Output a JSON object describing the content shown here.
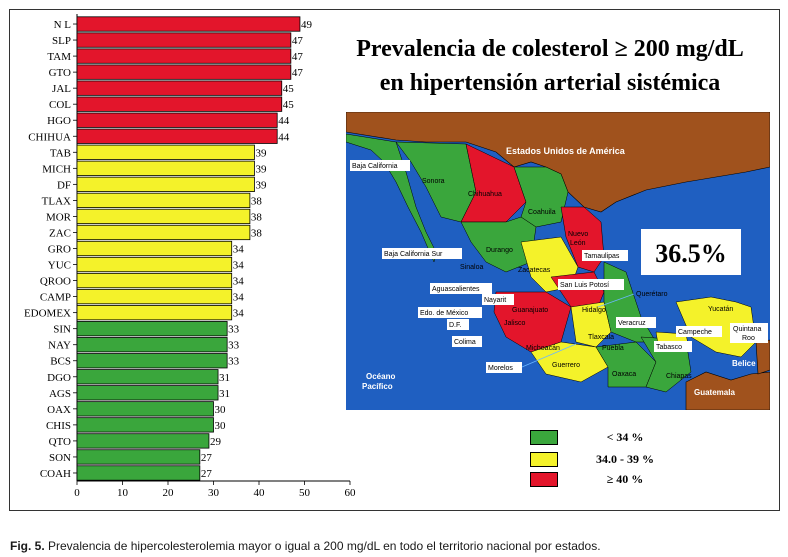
{
  "chart_data": {
    "type": "bar",
    "orientation": "horizontal",
    "categories": [
      "N L",
      "SLP",
      "TAM",
      "GTO",
      "JAL",
      "COL",
      "HGO",
      "CHIHUA",
      "TAB",
      "MICH",
      "DF",
      "TLAX",
      "MOR",
      "ZAC",
      "GRO",
      "YUC",
      "QROO",
      "CAMP",
      "EDOMEX",
      "SIN",
      "NAY",
      "BCS",
      "DGO",
      "AGS",
      "OAX",
      "CHIS",
      "QTO",
      "SON",
      "COAH"
    ],
    "values": [
      49,
      47,
      47,
      47,
      45,
      45,
      44,
      44,
      39,
      39,
      39,
      38,
      38,
      38,
      34,
      34,
      34,
      34,
      34,
      33,
      33,
      33,
      31,
      31,
      30,
      30,
      29,
      27,
      27
    ],
    "xlim": [
      0,
      60
    ],
    "xticks": [
      0,
      10,
      20,
      30,
      40,
      50,
      60
    ],
    "title": "Prevalencia de colesterol ≥ 200 mg/dL en hipertensión arterial sistémica",
    "xlabel": "",
    "ylabel": ""
  },
  "title": {
    "line1": "Prevalencia de colesterol ≥ 200 mg/dL",
    "line2": "en hipertensión arterial sistémica"
  },
  "colors": {
    "high": "#e3152b",
    "mid": "#f4f22a",
    "low": "#3aa63c",
    "ocean": "#1f5fc1",
    "usa": "#a0521d"
  },
  "map": {
    "usa_label": "Estados Unidos de América",
    "national_value": "36.5%",
    "ocean_label_1": "Océano",
    "ocean_label_2": "Pacífico",
    "belice": "Belice",
    "guatemala": "Guatemala",
    "states": {
      "baja_california": "Baja California",
      "sonora": "Sonora",
      "chihuahua": "Chihuahua",
      "coahuila": "Coahuila",
      "nuevo_leon_1": "Nuevo",
      "nuevo_leon_2": "León",
      "tamaulipas": "Tamaulipas",
      "bcs": "Baja California Sur",
      "durango": "Durango",
      "sinaloa": "Sinaloa",
      "zacatecas": "Zacatecas",
      "aguascalientes": "Aguascalientes",
      "slp": "San Luis Potosí",
      "nayarit": "Nayarit",
      "queretaro": "Querétaro",
      "edomex": "Edo. de México",
      "guanajuato": "Guanajuato",
      "hidalgo": "Hidalgo",
      "yucatan": "Yucatán",
      "df": "D.F.",
      "jalisco": "Jalisco",
      "veracruz": "Veracruz",
      "campeche": "Campeche",
      "quintana_roo_1": "Quintana",
      "quintana_roo_2": "Roo",
      "colima": "Colima",
      "michoacan": "Michoacán",
      "tlaxcala": "Tlaxcala",
      "puebla": "Puebla",
      "tabasco": "Tabasco",
      "morelos": "Morelos",
      "guerrero": "Guerrero",
      "oaxaca": "Oaxaca",
      "chiapas": "Chiapas"
    }
  },
  "legend": [
    {
      "label": "<  34 %",
      "color": "#3aa63c"
    },
    {
      "label": "34.0 - 39 %",
      "color": "#f4f22a"
    },
    {
      "label": "≥ 40 %",
      "color": "#e3152b"
    }
  ],
  "caption": {
    "label": "Fig. 5.",
    "text": " Prevalencia de hipercolesterolemia mayor o igual a 200 mg/dL en todo el territorio nacional por estados."
  }
}
